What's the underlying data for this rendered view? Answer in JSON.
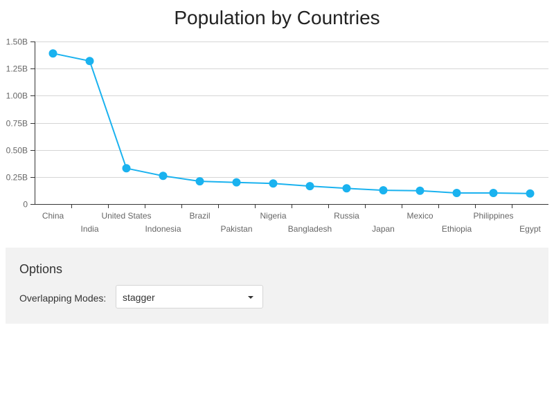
{
  "chart_data": {
    "type": "line",
    "title": "Population by Countries",
    "xlabel": "",
    "ylabel": "",
    "ylim": [
      0,
      1.5
    ],
    "y_ticks": [
      "0",
      "0.25B",
      "0.50B",
      "0.75B",
      "1.00B",
      "1.25B",
      "1.50B"
    ],
    "y_unit": "billions",
    "grid": true,
    "label_overlap_mode": "stagger",
    "categories": [
      "China",
      "India",
      "United States",
      "Indonesia",
      "Brazil",
      "Pakistan",
      "Nigeria",
      "Bangladesh",
      "Russia",
      "Japan",
      "Mexico",
      "Ethiopia",
      "Philippines",
      "Egypt"
    ],
    "series": [
      {
        "values": [
          1.39,
          1.32,
          0.33,
          0.26,
          0.21,
          0.2,
          0.19,
          0.165,
          0.145,
          0.127,
          0.123,
          0.102,
          0.102,
          0.097
        ],
        "color": "#1ab2ef"
      }
    ]
  },
  "options": {
    "title": "Options",
    "overlap_label": "Overlapping Modes:",
    "overlap_value": "stagger"
  },
  "colors": {
    "series": "#1ab2ef",
    "grid": "#d5d5d5",
    "axis": "#666666",
    "panel_bg": "#f2f2f2"
  }
}
